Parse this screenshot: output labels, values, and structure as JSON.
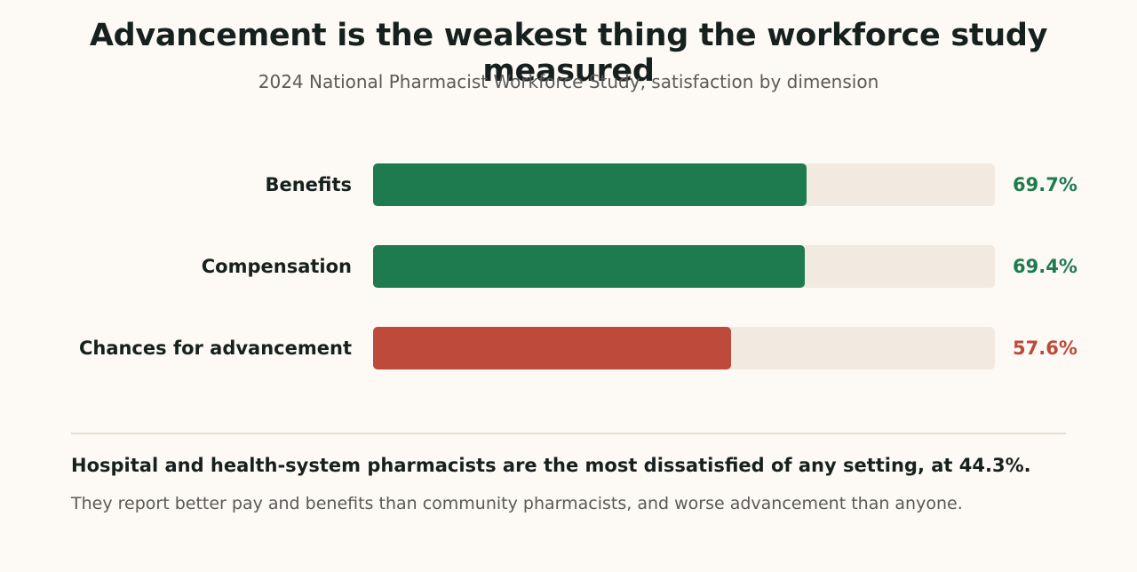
{
  "chart_data": {
    "type": "bar",
    "orientation": "horizontal",
    "title": "Advancement is the weakest thing the workforce study measured",
    "subtitle": "2024 National Pharmacist Workforce Study, satisfaction by dimension",
    "categories": [
      "Benefits",
      "Compensation",
      "Chances for advancement"
    ],
    "values": [
      69.7,
      69.4,
      57.6
    ],
    "value_labels": [
      "69.7%",
      "69.4%",
      "57.6%"
    ],
    "xlim": [
      0,
      100
    ],
    "unit": "%",
    "grid": false,
    "colors": {
      "strong": "#1e7b50",
      "weak": "#bd4a3a",
      "track": "#f2e9e0"
    },
    "bar_color_keys": [
      "strong",
      "strong",
      "weak"
    ]
  },
  "note": {
    "headline": "Hospital and health-system pharmacists are the most dissatisfied of any setting, at 44.3%.",
    "body": "They report better pay and benefits than community pharmacists, and worse advancement than anyone."
  }
}
